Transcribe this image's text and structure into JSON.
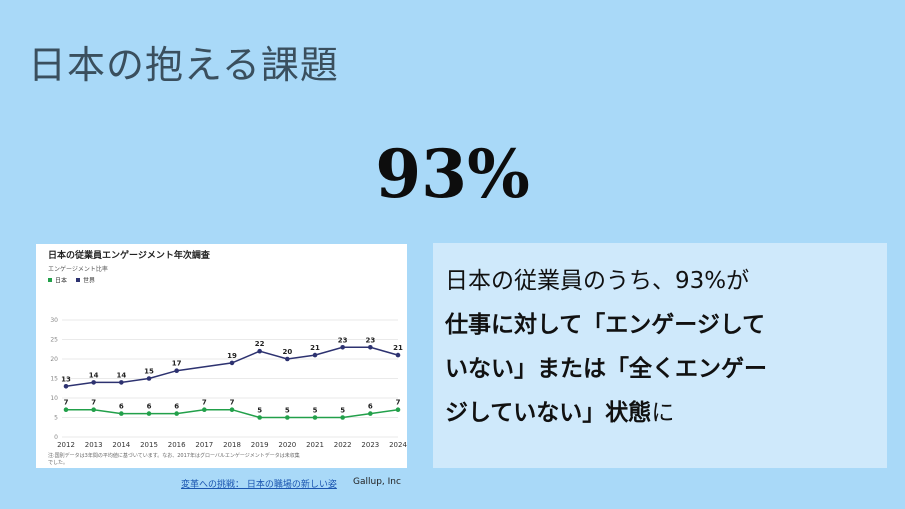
{
  "slide": {
    "title": "日本の抱える課題",
    "big_number": "93%",
    "callout_line1": "日本の従業員のうち、93%が",
    "callout_line2": "仕事に対して「エンゲージして",
    "callout_line3": "いない」または「全くエンゲー",
    "callout_line4": "ジしていない」状態",
    "callout_tail": "に",
    "source_link": "変革への挑戦： 日本の職場の新しい姿",
    "source_org": "Gallup, Inc"
  },
  "colors": {
    "background": "#a9d9f8",
    "callout_bg": "#cfe9fb",
    "world": "#2d3270",
    "japan": "#22a04a"
  },
  "chart_data": {
    "type": "line",
    "title": "日本の従業員エンゲージメント年次調査",
    "ylabel": "エンゲージメント比率",
    "x": [
      "2012",
      "2013",
      "2014",
      "2015",
      "2016",
      "2017",
      "2018",
      "2019",
      "2020",
      "2021",
      "2022",
      "2023",
      "2024"
    ],
    "yticks": [
      "0",
      "5",
      "10",
      "15",
      "20",
      "25",
      "30"
    ],
    "ylim": [
      0,
      30
    ],
    "grid": true,
    "legend_position": "top-left",
    "series": [
      {
        "name": "日本",
        "color": "#22a04a",
        "values": [
          7,
          7,
          6,
          6,
          6,
          7,
          7,
          5,
          5,
          5,
          5,
          6,
          7
        ]
      },
      {
        "name": "世界",
        "color": "#2d3270",
        "values": [
          13,
          14,
          14,
          15,
          17,
          null,
          19,
          22,
          20,
          21,
          23,
          23,
          21
        ]
      }
    ],
    "footnote_line1": "注:国別データは3年間の平均値に基づいています。なお、2017年はグローバルエンゲージメントデータは未収集",
    "footnote_line2": "でした。"
  }
}
